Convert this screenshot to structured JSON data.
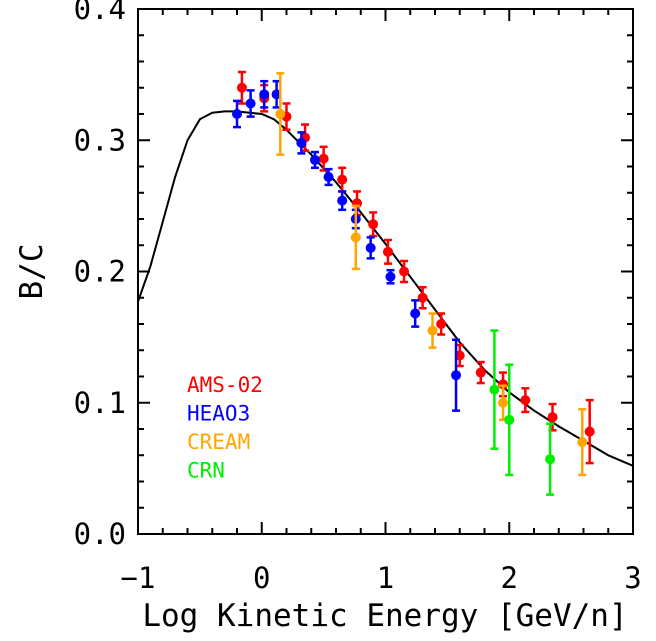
{
  "chart_data": {
    "type": "scatter",
    "xlabel": "Log Kinetic Energy [GeV/n]",
    "ylabel": "B/C",
    "xlim": [
      -1,
      3
    ],
    "ylim": [
      0,
      0.4
    ],
    "x_ticks": [
      -1,
      0,
      1,
      2,
      3
    ],
    "x_tick_labels": [
      "−1",
      "0",
      "1",
      "2",
      "3"
    ],
    "y_ticks": [
      0,
      0.1,
      0.2,
      0.3,
      0.4
    ],
    "y_tick_labels": [
      "0.0",
      "0.1",
      "0.2",
      "0.3",
      "0.4"
    ],
    "grid": false,
    "legend_placement": "lower-left",
    "model_curve": {
      "color": "#000000",
      "x": [
        -1.0,
        -0.9,
        -0.8,
        -0.7,
        -0.6,
        -0.5,
        -0.4,
        -0.3,
        -0.2,
        -0.1,
        0.0,
        0.1,
        0.2,
        0.4,
        0.6,
        0.8,
        1.0,
        1.2,
        1.4,
        1.6,
        1.8,
        2.0,
        2.2,
        2.4,
        2.6,
        2.8,
        3.0
      ],
      "y": [
        0.177,
        0.204,
        0.238,
        0.272,
        0.3,
        0.316,
        0.321,
        0.322,
        0.322,
        0.321,
        0.32,
        0.316,
        0.308,
        0.289,
        0.268,
        0.245,
        0.221,
        0.196,
        0.171,
        0.146,
        0.125,
        0.108,
        0.094,
        0.082,
        0.071,
        0.06,
        0.052
      ]
    },
    "series": [
      {
        "name": "AMS-02",
        "color": "#ff0000",
        "points": [
          {
            "x": -0.16,
            "y": 0.34,
            "err": 0.012
          },
          {
            "x": 0.02,
            "y": 0.332,
            "err": 0.01
          },
          {
            "x": 0.2,
            "y": 0.318,
            "err": 0.01
          },
          {
            "x": 0.35,
            "y": 0.302,
            "err": 0.01
          },
          {
            "x": 0.5,
            "y": 0.286,
            "err": 0.009
          },
          {
            "x": 0.65,
            "y": 0.27,
            "err": 0.009
          },
          {
            "x": 0.77,
            "y": 0.252,
            "err": 0.009
          },
          {
            "x": 0.9,
            "y": 0.236,
            "err": 0.009
          },
          {
            "x": 1.02,
            "y": 0.215,
            "err": 0.009
          },
          {
            "x": 1.15,
            "y": 0.2,
            "err": 0.008
          },
          {
            "x": 1.3,
            "y": 0.18,
            "err": 0.008
          },
          {
            "x": 1.45,
            "y": 0.16,
            "err": 0.008
          },
          {
            "x": 1.6,
            "y": 0.136,
            "err": 0.008
          },
          {
            "x": 1.77,
            "y": 0.123,
            "err": 0.008
          },
          {
            "x": 1.95,
            "y": 0.114,
            "err": 0.009
          },
          {
            "x": 2.13,
            "y": 0.102,
            "err": 0.009
          },
          {
            "x": 2.35,
            "y": 0.089,
            "err": 0.01
          },
          {
            "x": 2.65,
            "y": 0.078,
            "err": 0.024
          }
        ]
      },
      {
        "name": "HEAO3",
        "color": "#0000ff",
        "points": [
          {
            "x": -0.2,
            "y": 0.32,
            "err": 0.01
          },
          {
            "x": -0.09,
            "y": 0.328,
            "err": 0.01
          },
          {
            "x": 0.02,
            "y": 0.335,
            "err": 0.01
          },
          {
            "x": 0.12,
            "y": 0.335,
            "err": 0.01
          },
          {
            "x": 0.32,
            "y": 0.298,
            "err": 0.008
          },
          {
            "x": 0.43,
            "y": 0.285,
            "err": 0.006
          },
          {
            "x": 0.54,
            "y": 0.272,
            "err": 0.006
          },
          {
            "x": 0.65,
            "y": 0.254,
            "err": 0.007
          },
          {
            "x": 0.76,
            "y": 0.24,
            "err": 0.007
          },
          {
            "x": 0.88,
            "y": 0.218,
            "err": 0.008
          },
          {
            "x": 1.04,
            "y": 0.196,
            "err": 0.005
          },
          {
            "x": 1.24,
            "y": 0.168,
            "err": 0.01
          },
          {
            "x": 1.57,
            "y": 0.121,
            "err": 0.027
          }
        ]
      },
      {
        "name": "CREAM",
        "color": "#ffa500",
        "points": [
          {
            "x": 0.15,
            "y": 0.32,
            "err": 0.031
          },
          {
            "x": 0.76,
            "y": 0.226,
            "err": 0.024
          },
          {
            "x": 1.38,
            "y": 0.155,
            "err": 0.013
          },
          {
            "x": 1.95,
            "y": 0.1,
            "err": 0.013
          },
          {
            "x": 2.59,
            "y": 0.07,
            "err": 0.025
          }
        ]
      },
      {
        "name": "CRN",
        "color": "#00ee00",
        "points": [
          {
            "x": 1.88,
            "y": 0.11,
            "err": 0.045
          },
          {
            "x": 2.0,
            "y": 0.087,
            "err": 0.042
          },
          {
            "x": 2.33,
            "y": 0.057,
            "err": 0.027
          }
        ]
      }
    ]
  }
}
